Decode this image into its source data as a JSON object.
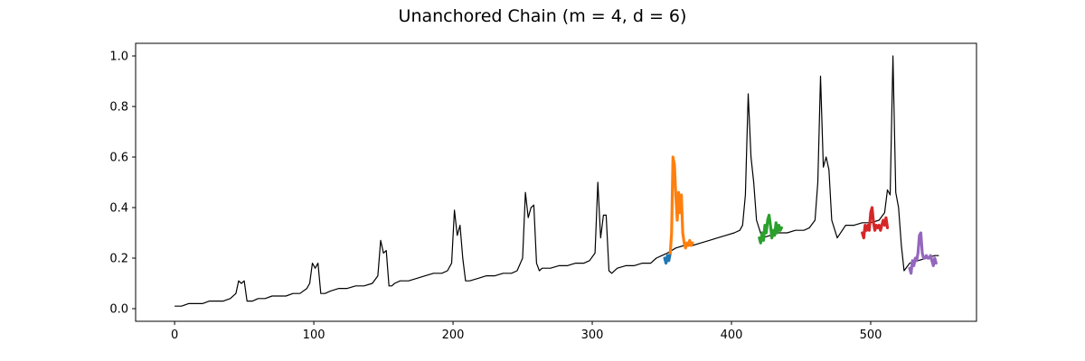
{
  "chart_data": {
    "type": "line",
    "title": "Unanchored Chain (m = 4, d = 6)",
    "xlabel": "",
    "ylabel": "",
    "xlim": [
      -28,
      576
    ],
    "ylim": [
      -0.05,
      1.05
    ],
    "xticks": [
      0,
      100,
      200,
      300,
      400,
      500
    ],
    "yticks": [
      0.0,
      0.2,
      0.4,
      0.6,
      0.8,
      1.0
    ],
    "xtick_labels": [
      "0",
      "100",
      "200",
      "300",
      "400",
      "500"
    ],
    "ytick_labels": [
      "0.0",
      "0.2",
      "0.4",
      "0.6",
      "0.8",
      "1.0"
    ],
    "grid": false,
    "background_series": {
      "name": "",
      "color": "#000000",
      "x": [
        0,
        5,
        10,
        15,
        20,
        25,
        30,
        35,
        40,
        44,
        46,
        48,
        50,
        52,
        54,
        56,
        60,
        65,
        70,
        75,
        80,
        85,
        90,
        95,
        97,
        99,
        101,
        103,
        105,
        108,
        112,
        118,
        124,
        130,
        136,
        142,
        146,
        148,
        150,
        152,
        154,
        156,
        158,
        162,
        168,
        174,
        180,
        186,
        192,
        196,
        199,
        201,
        203,
        205,
        207,
        209,
        212,
        218,
        224,
        230,
        236,
        242,
        246,
        250,
        252,
        254,
        256,
        258,
        260,
        262,
        264,
        270,
        276,
        282,
        288,
        294,
        298,
        302,
        304,
        306,
        308,
        310,
        312,
        314,
        318,
        324,
        330,
        336,
        342,
        346,
        350,
        354,
        360,
        366,
        372,
        378,
        384,
        390,
        396,
        402,
        406,
        408,
        410,
        412,
        414,
        416,
        418,
        422,
        428,
        434,
        440,
        446,
        452,
        456,
        460,
        462,
        464,
        466,
        468,
        470,
        472,
        476,
        482,
        488,
        494,
        500,
        506,
        510,
        512,
        514,
        516,
        518,
        520,
        522,
        524,
        528,
        534,
        540,
        546,
        549
      ],
      "y": [
        0.01,
        0.01,
        0.02,
        0.02,
        0.02,
        0.03,
        0.03,
        0.03,
        0.04,
        0.06,
        0.11,
        0.1,
        0.11,
        0.03,
        0.03,
        0.03,
        0.04,
        0.04,
        0.05,
        0.05,
        0.05,
        0.06,
        0.06,
        0.08,
        0.1,
        0.18,
        0.16,
        0.18,
        0.06,
        0.06,
        0.07,
        0.08,
        0.08,
        0.09,
        0.09,
        0.1,
        0.13,
        0.27,
        0.22,
        0.23,
        0.09,
        0.09,
        0.1,
        0.11,
        0.11,
        0.12,
        0.13,
        0.14,
        0.14,
        0.15,
        0.18,
        0.39,
        0.29,
        0.33,
        0.2,
        0.11,
        0.11,
        0.12,
        0.13,
        0.13,
        0.14,
        0.14,
        0.15,
        0.2,
        0.46,
        0.36,
        0.4,
        0.41,
        0.18,
        0.15,
        0.16,
        0.16,
        0.17,
        0.17,
        0.18,
        0.18,
        0.19,
        0.22,
        0.5,
        0.28,
        0.37,
        0.37,
        0.15,
        0.14,
        0.16,
        0.17,
        0.17,
        0.18,
        0.18,
        0.2,
        0.21,
        0.22,
        0.24,
        0.25,
        0.25,
        0.26,
        0.27,
        0.28,
        0.29,
        0.3,
        0.31,
        0.33,
        0.45,
        0.85,
        0.6,
        0.5,
        0.35,
        0.28,
        0.29,
        0.3,
        0.3,
        0.31,
        0.31,
        0.32,
        0.35,
        0.5,
        0.92,
        0.56,
        0.6,
        0.55,
        0.35,
        0.28,
        0.33,
        0.33,
        0.34,
        0.34,
        0.35,
        0.38,
        0.47,
        0.45,
        1.0,
        0.46,
        0.4,
        0.25,
        0.15,
        0.18,
        0.19,
        0.2,
        0.21,
        0.21
      ]
    },
    "series": [
      {
        "color": "#1f77b4",
        "x": [
          352,
          353,
          354,
          355,
          356
        ],
        "y": [
          0.2,
          0.18,
          0.21,
          0.19,
          0.22
        ]
      },
      {
        "color": "#ff7f0e",
        "x": [
          356,
          357,
          358,
          359,
          360,
          361,
          362,
          363,
          364,
          365,
          366,
          367,
          368,
          369,
          370,
          371,
          372
        ],
        "y": [
          0.22,
          0.3,
          0.6,
          0.57,
          0.45,
          0.35,
          0.46,
          0.38,
          0.45,
          0.3,
          0.26,
          0.24,
          0.26,
          0.25,
          0.27,
          0.25,
          0.26
        ]
      },
      {
        "color": "#2ca02c",
        "x": [
          420,
          421,
          422,
          423,
          424,
          425,
          426,
          427,
          428,
          429,
          430,
          431,
          432,
          433,
          434,
          435,
          436
        ],
        "y": [
          0.28,
          0.26,
          0.3,
          0.27,
          0.33,
          0.3,
          0.35,
          0.37,
          0.33,
          0.28,
          0.31,
          0.29,
          0.34,
          0.3,
          0.33,
          0.31,
          0.32
        ]
      },
      {
        "color": "#d62728",
        "x": [
          494,
          495,
          496,
          497,
          498,
          499,
          500,
          501,
          502,
          503,
          504,
          505,
          506,
          507,
          508,
          509,
          510,
          511,
          512
        ],
        "y": [
          0.3,
          0.28,
          0.33,
          0.31,
          0.33,
          0.31,
          0.38,
          0.4,
          0.34,
          0.31,
          0.33,
          0.32,
          0.33,
          0.31,
          0.33,
          0.35,
          0.33,
          0.36,
          0.32
        ]
      },
      {
        "color": "#9467bd",
        "x": [
          528,
          529,
          530,
          531,
          532,
          533,
          534,
          535,
          536,
          537,
          538,
          539,
          540,
          541,
          542,
          543,
          544,
          545,
          546,
          547
        ],
        "y": [
          0.16,
          0.14,
          0.19,
          0.17,
          0.2,
          0.19,
          0.22,
          0.29,
          0.3,
          0.22,
          0.2,
          0.2,
          0.21,
          0.2,
          0.2,
          0.21,
          0.19,
          0.17,
          0.2,
          0.18
        ]
      }
    ]
  }
}
